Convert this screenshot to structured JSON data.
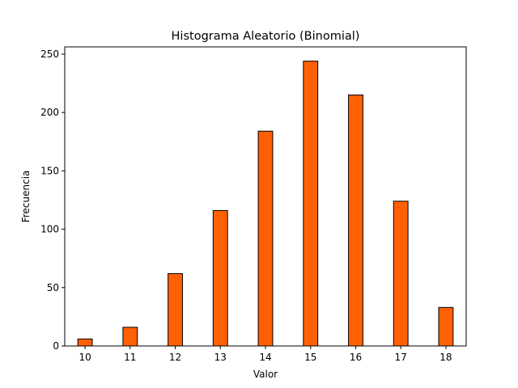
{
  "chart_data": {
    "type": "bar",
    "title": "Histograma Aleatorio (Binomial)",
    "xlabel": "Valor",
    "ylabel": "Frecuencia",
    "categories": [
      10,
      11,
      12,
      13,
      14,
      15,
      16,
      17,
      18
    ],
    "values": [
      6,
      16,
      62,
      116,
      184,
      244,
      215,
      124,
      33
    ],
    "x_ticks": [
      10,
      11,
      12,
      13,
      14,
      15,
      16,
      17,
      18
    ],
    "y_ticks": [
      0,
      50,
      100,
      150,
      200,
      250
    ],
    "xlim": [
      9.55,
      18.45
    ],
    "ylim": [
      0,
      256.2
    ],
    "bar_width": 0.32,
    "grid": false,
    "legend": false,
    "colors": {
      "bar_fill": "#ff6004",
      "bar_edge": "#000000",
      "axes": "#000000"
    }
  }
}
